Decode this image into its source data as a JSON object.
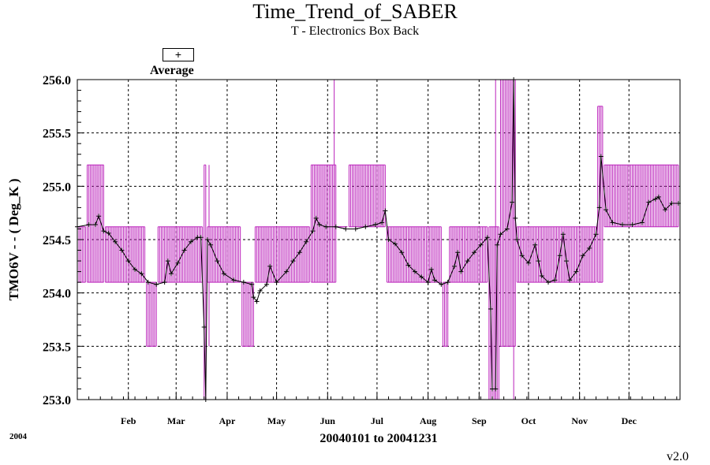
{
  "title": "Time_Trend_of_SABER",
  "subtitle": "T - Electronics Box Back",
  "legend": {
    "symbol": "+",
    "label": "Average"
  },
  "ylabel": "TMO6V  - - ( Deg_K )",
  "xlabel": "20040101 to 20041231",
  "year_label": "2004",
  "version": "v2.0",
  "colors": {
    "range": "#bb22bb",
    "average": "#000000",
    "grid": "#000000",
    "background": "#ffffff"
  },
  "chart_data": {
    "type": "line",
    "title": "Time_Trend_of_SABER",
    "subtitle": "T - Electronics Box Back",
    "xlabel": "20040101 to 20041231",
    "ylabel": "TMO6V  - - ( Deg_K )",
    "x_unit": "day of year 2004",
    "xlim": [
      1,
      367
    ],
    "ylim": [
      253.0,
      256.0
    ],
    "y_ticks": [
      "253.0",
      "253.5",
      "254.0",
      "254.5",
      "255.0",
      "255.5",
      "256.0"
    ],
    "x_ticks": [
      {
        "label": "Feb",
        "day": 32
      },
      {
        "label": "Mar",
        "day": 61
      },
      {
        "label": "Apr",
        "day": 92
      },
      {
        "label": "May",
        "day": 122
      },
      {
        "label": "Jun",
        "day": 153
      },
      {
        "label": "Jul",
        "day": 183
      },
      {
        "label": "Aug",
        "day": 214
      },
      {
        "label": "Sep",
        "day": 245
      },
      {
        "label": "Oct",
        "day": 275
      },
      {
        "label": "Nov",
        "day": 306
      },
      {
        "label": "Dec",
        "day": 336
      }
    ],
    "grid": true,
    "legend_position": "top-left",
    "series": [
      {
        "name": "Average",
        "style": "line with + markers",
        "points": [
          [
            1,
            254.62
          ],
          [
            8,
            254.64
          ],
          [
            12,
            254.64
          ],
          [
            14,
            254.72
          ],
          [
            17,
            254.58
          ],
          [
            20,
            254.56
          ],
          [
            24,
            254.48
          ],
          [
            28,
            254.4
          ],
          [
            32,
            254.3
          ],
          [
            36,
            254.22
          ],
          [
            40,
            254.18
          ],
          [
            44,
            254.1
          ],
          [
            49,
            254.08
          ],
          [
            54,
            254.1
          ],
          [
            56,
            254.3
          ],
          [
            58,
            254.18
          ],
          [
            62,
            254.28
          ],
          [
            66,
            254.4
          ],
          [
            70,
            254.48
          ],
          [
            74,
            254.52
          ],
          [
            76,
            254.52
          ],
          [
            78,
            253.68
          ],
          [
            79,
            253.0
          ],
          [
            80,
            254.5
          ],
          [
            82,
            254.45
          ],
          [
            86,
            254.3
          ],
          [
            90,
            254.18
          ],
          [
            96,
            254.12
          ],
          [
            102,
            254.1
          ],
          [
            107,
            254.08
          ],
          [
            108,
            253.96
          ],
          [
            110,
            253.92
          ],
          [
            112,
            254.02
          ],
          [
            116,
            254.08
          ],
          [
            118,
            254.25
          ],
          [
            122,
            254.1
          ],
          [
            128,
            254.2
          ],
          [
            132,
            254.3
          ],
          [
            136,
            254.38
          ],
          [
            140,
            254.48
          ],
          [
            144,
            254.58
          ],
          [
            146,
            254.7
          ],
          [
            148,
            254.64
          ],
          [
            152,
            254.62
          ],
          [
            158,
            254.62
          ],
          [
            164,
            254.6
          ],
          [
            170,
            254.6
          ],
          [
            176,
            254.62
          ],
          [
            182,
            254.64
          ],
          [
            186,
            254.66
          ],
          [
            188,
            254.77
          ],
          [
            190,
            254.5
          ],
          [
            194,
            254.46
          ],
          [
            198,
            254.38
          ],
          [
            202,
            254.26
          ],
          [
            206,
            254.2
          ],
          [
            210,
            254.15
          ],
          [
            214,
            254.1
          ],
          [
            216,
            254.22
          ],
          [
            218,
            254.12
          ],
          [
            222,
            254.08
          ],
          [
            226,
            254.1
          ],
          [
            230,
            254.25
          ],
          [
            232,
            254.38
          ],
          [
            234,
            254.2
          ],
          [
            238,
            254.3
          ],
          [
            242,
            254.38
          ],
          [
            246,
            254.45
          ],
          [
            250,
            254.52
          ],
          [
            252,
            253.85
          ],
          [
            253,
            253.1
          ],
          [
            255,
            253.1
          ],
          [
            256,
            254.45
          ],
          [
            258,
            254.55
          ],
          [
            262,
            254.6
          ],
          [
            265,
            254.85
          ],
          [
            266,
            256.0
          ],
          [
            267,
            254.7
          ],
          [
            268,
            254.5
          ],
          [
            271,
            254.35
          ],
          [
            275,
            254.28
          ],
          [
            279,
            254.45
          ],
          [
            281,
            254.3
          ],
          [
            283,
            254.16
          ],
          [
            287,
            254.1
          ],
          [
            291,
            254.12
          ],
          [
            294,
            254.35
          ],
          [
            296,
            254.55
          ],
          [
            298,
            254.3
          ],
          [
            300,
            254.12
          ],
          [
            304,
            254.2
          ],
          [
            308,
            254.35
          ],
          [
            312,
            254.42
          ],
          [
            316,
            254.55
          ],
          [
            318,
            254.8
          ],
          [
            319,
            255.28
          ],
          [
            322,
            254.78
          ],
          [
            326,
            254.66
          ],
          [
            332,
            254.64
          ],
          [
            338,
            254.64
          ],
          [
            344,
            254.66
          ],
          [
            348,
            254.85
          ],
          [
            352,
            254.88
          ],
          [
            354,
            254.9
          ],
          [
            358,
            254.78
          ],
          [
            362,
            254.84
          ],
          [
            366,
            254.84
          ]
        ]
      },
      {
        "name": "",
        "style": "vertical range bars",
        "bands": [
          {
            "from": 1,
            "to": 6,
            "min": 254.1,
            "max": 254.62
          },
          {
            "from": 7,
            "to": 17,
            "min": 254.1,
            "max": 255.2
          },
          {
            "from": 18,
            "to": 42,
            "min": 254.1,
            "max": 254.62
          },
          {
            "from": 43,
            "to": 49,
            "min": 253.5,
            "max": 254.1
          },
          {
            "from": 50,
            "to": 77,
            "min": 254.1,
            "max": 254.62
          },
          {
            "from": 78,
            "to": 79,
            "min": 253.0,
            "max": 255.2
          },
          {
            "from": 80,
            "to": 100,
            "min": 254.1,
            "max": 254.62
          },
          {
            "from": 101,
            "to": 108,
            "min": 253.5,
            "max": 254.1
          },
          {
            "from": 109,
            "to": 142,
            "min": 254.1,
            "max": 254.62
          },
          {
            "from": 143,
            "to": 158,
            "min": 254.1,
            "max": 255.2
          },
          {
            "from": 159,
            "to": 165,
            "min": 254.62,
            "max": 254.62
          },
          {
            "from": 166,
            "to": 188,
            "min": 254.62,
            "max": 255.2
          },
          {
            "from": 189,
            "to": 222,
            "min": 254.1,
            "max": 254.62
          },
          {
            "from": 223,
            "to": 226,
            "min": 253.5,
            "max": 254.1
          },
          {
            "from": 227,
            "to": 250,
            "min": 254.1,
            "max": 254.62
          },
          {
            "from": 251,
            "to": 257,
            "min": 253.0,
            "max": 254.62
          },
          {
            "from": 258,
            "to": 267,
            "min": 253.5,
            "max": 256.0
          },
          {
            "from": 268,
            "to": 316,
            "min": 254.1,
            "max": 254.62
          },
          {
            "from": 317,
            "to": 320,
            "min": 254.1,
            "max": 255.75
          },
          {
            "from": 321,
            "to": 366,
            "min": 254.62,
            "max": 255.2
          }
        ]
      }
    ]
  }
}
